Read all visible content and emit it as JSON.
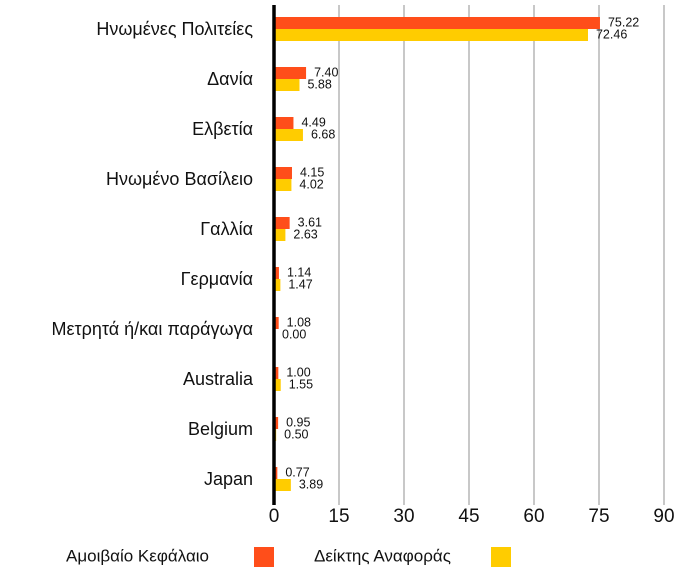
{
  "chart_data": {
    "type": "hbar",
    "categories": [
      "Ηνωμένες Πολιτείες",
      "Δανία",
      "Ελβετία",
      "Ηνωμένο Βασίλειο",
      "Γαλλία",
      "Γερμανία",
      "Μετρητά ή/και παράγωγα",
      "Australia",
      "Belgium",
      "Japan"
    ],
    "series": [
      {
        "name": "Αμοιβαίο Κεφάλαιο",
        "color": "#ff4e1a",
        "values": [
          75.22,
          7.4,
          4.49,
          4.15,
          3.61,
          1.14,
          1.08,
          1.0,
          0.95,
          0.77
        ],
        "value_labels": [
          "75.22",
          "7.40",
          "4.49",
          "4.15",
          "3.61",
          "1.14",
          "1.08",
          "1.00",
          "0.95",
          "0.77"
        ]
      },
      {
        "name": "Δείκτης Αναφοράς",
        "color": "#ffcc00",
        "values": [
          72.46,
          5.88,
          6.68,
          4.02,
          2.63,
          1.47,
          0.0,
          1.55,
          0.5,
          3.89
        ],
        "value_labels": [
          "72.46",
          "5.88",
          "6.68",
          "4.02",
          "2.63",
          "1.47",
          "0.00",
          "1.55",
          "0.50",
          "3.89"
        ]
      }
    ],
    "xlim": [
      0,
      90
    ],
    "xticks": [
      0,
      15,
      30,
      45,
      60,
      75,
      90
    ],
    "grid": true
  }
}
